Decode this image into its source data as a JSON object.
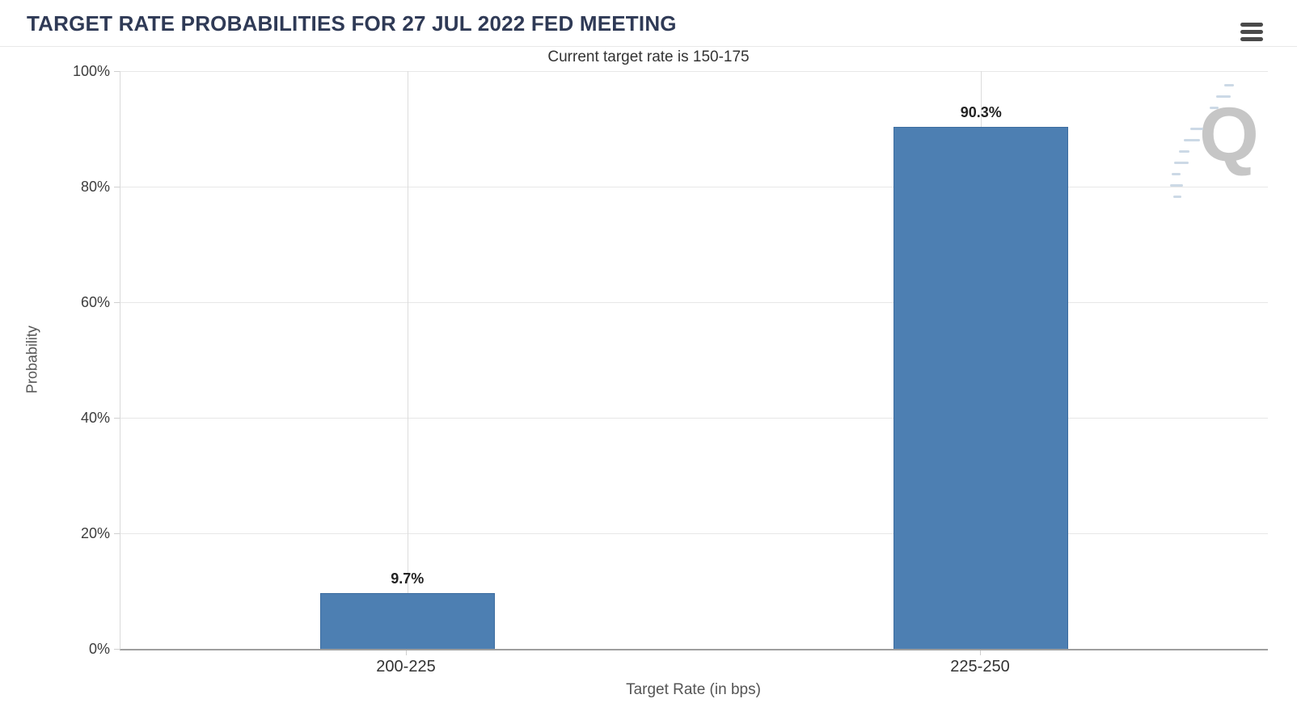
{
  "header": {
    "title": "TARGET RATE PROBABILITIES FOR 27 JUL 2022 FED MEETING",
    "menu_icon": "hamburger-icon"
  },
  "chart_data": {
    "type": "bar",
    "title": "TARGET RATE PROBABILITIES FOR 27 JUL 2022 FED MEETING",
    "subtitle": "Current target rate is 150-175",
    "categories": [
      "200-225",
      "225-250"
    ],
    "values": [
      9.7,
      90.3
    ],
    "data_labels": [
      "9.7%",
      "90.3%"
    ],
    "xlabel": "Target Rate (in bps)",
    "ylabel": "Probability",
    "ylim": [
      0,
      100
    ],
    "yticks": [
      "0%",
      "20%",
      "40%",
      "60%",
      "80%",
      "100%"
    ],
    "grid": true,
    "legend": "none",
    "bar_color": "#4d7fb2",
    "title_color": "#2f3a56"
  },
  "watermark": {
    "letter": "Q"
  }
}
